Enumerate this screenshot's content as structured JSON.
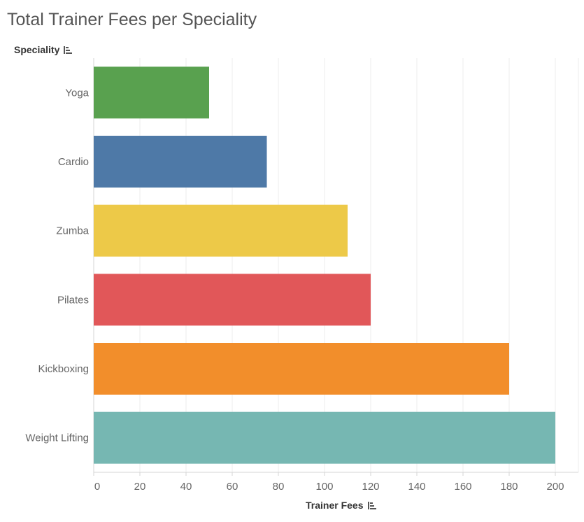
{
  "chart_data": {
    "type": "bar",
    "orientation": "horizontal",
    "title": "Total Trainer Fees per Speciality",
    "ylabel": "Speciality",
    "xlabel": "Trainer Fees",
    "categories": [
      "Yoga",
      "Cardio",
      "Zumba",
      "Pilates",
      "Kickboxing",
      "Weight Lifting"
    ],
    "values": [
      50,
      75,
      110,
      120,
      180,
      200
    ],
    "colors": [
      "#59a14f",
      "#4e79a7",
      "#edc948",
      "#e15759",
      "#f28e2b",
      "#76b7b2"
    ],
    "xlim": [
      0,
      210
    ],
    "xticks": [
      0,
      20,
      40,
      60,
      80,
      100,
      120,
      140,
      160,
      180,
      200
    ],
    "grid": "vertical",
    "sort_icons": [
      "sort-descending-icon",
      "sort-descending-icon"
    ]
  }
}
